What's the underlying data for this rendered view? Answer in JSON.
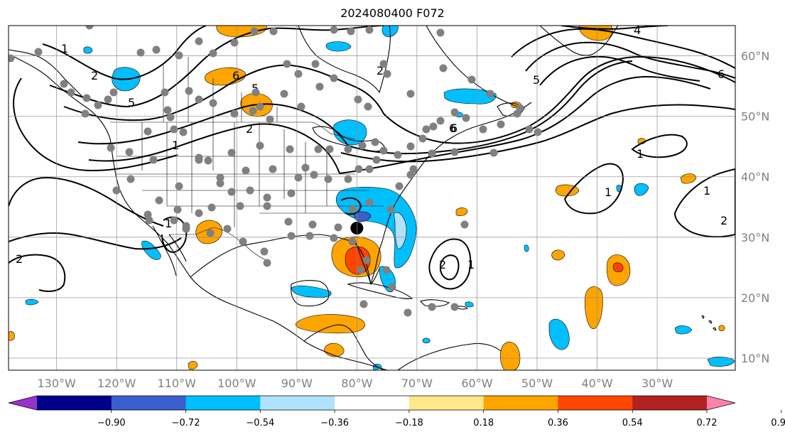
{
  "title": "2024080400 F072",
  "map": {
    "projection": "PlateCarree",
    "lon_range": [
      -138,
      -17
    ],
    "lat_range": [
      8,
      65
    ],
    "lon_tick_labels": [
      "130°W",
      "120°W",
      "110°W",
      "100°W",
      "90°W",
      "80°W",
      "70°W",
      "60°W",
      "50°W",
      "40°W",
      "30°W"
    ],
    "lat_tick_labels": [
      "10°N",
      "20°N",
      "30°N",
      "40°N",
      "50°N",
      "60°N"
    ],
    "gridlines": true,
    "storm_center_marker": {
      "lon": -80.0,
      "lat": 31.5
    }
  },
  "colorbar": {
    "orientation": "horizontal",
    "extend": "both",
    "tick_labels": [
      "−0.90",
      "−0.72",
      "−0.54",
      "−0.36",
      "−0.18",
      "0.18",
      "0.36",
      "0.54",
      "0.72",
      "0.90"
    ],
    "colors": [
      "#9932cc",
      "#00008b",
      "#3a5fcd",
      "#00bfff",
      "#b0e2ff",
      "#ffffff",
      "#ffe88a",
      "#ffa500",
      "#ff4500",
      "#b22222",
      "#ff82ab"
    ]
  },
  "contour_labels": [
    "1",
    "2",
    "5",
    "6",
    "5",
    "6",
    "1",
    "2",
    "2",
    "1",
    "6",
    "4",
    "5",
    "6",
    "1",
    "1",
    "1",
    "2",
    "1",
    "2",
    "2"
  ]
}
